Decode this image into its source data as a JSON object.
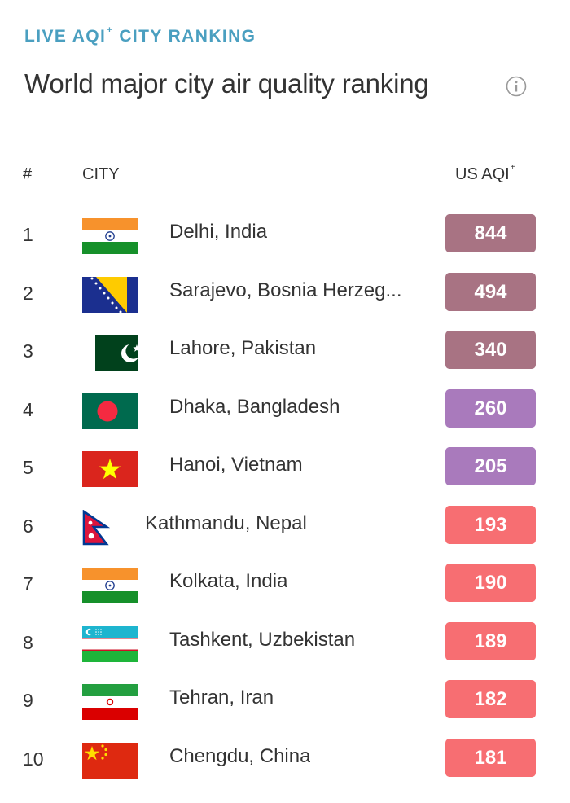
{
  "header": {
    "eyebrow": "LIVE AQI",
    "eyebrow_mark": "+",
    "title": "World major city air quality ranking",
    "info_icon": "info-circle-icon"
  },
  "columns": {
    "rank": "#",
    "city": "CITY",
    "aqi": "US AQI",
    "aqi_mark": "+"
  },
  "colors": {
    "hazardous": "#a87383",
    "very_unhealthy": "#a97abc",
    "unhealthy": "#f76e72",
    "eyebrow": "#4a9fc0"
  },
  "rows": [
    {
      "rank": "1",
      "city": "Delhi, India",
      "aqi": "844",
      "flag": "india-flag",
      "level": "hazardous"
    },
    {
      "rank": "2",
      "city": "Sarajevo, Bosnia Herzeg...",
      "aqi": "494",
      "flag": "bosnia-flag",
      "level": "hazardous"
    },
    {
      "rank": "3",
      "city": "Lahore, Pakistan",
      "aqi": "340",
      "flag": "pakistan-flag",
      "level": "hazardous"
    },
    {
      "rank": "4",
      "city": "Dhaka, Bangladesh",
      "aqi": "260",
      "flag": "bangladesh-flag",
      "level": "very_unhealthy"
    },
    {
      "rank": "5",
      "city": "Hanoi, Vietnam",
      "aqi": "205",
      "flag": "vietnam-flag",
      "level": "very_unhealthy"
    },
    {
      "rank": "6",
      "city": "Kathmandu, Nepal",
      "aqi": "193",
      "flag": "nepal-flag",
      "level": "unhealthy"
    },
    {
      "rank": "7",
      "city": "Kolkata, India",
      "aqi": "190",
      "flag": "india-flag",
      "level": "unhealthy"
    },
    {
      "rank": "8",
      "city": "Tashkent, Uzbekistan",
      "aqi": "189",
      "flag": "uzbekistan-flag",
      "level": "unhealthy"
    },
    {
      "rank": "9",
      "city": "Tehran, Iran",
      "aqi": "182",
      "flag": "iran-flag",
      "level": "unhealthy"
    },
    {
      "rank": "10",
      "city": "Chengdu, China",
      "aqi": "181",
      "flag": "china-flag",
      "level": "unhealthy"
    }
  ]
}
